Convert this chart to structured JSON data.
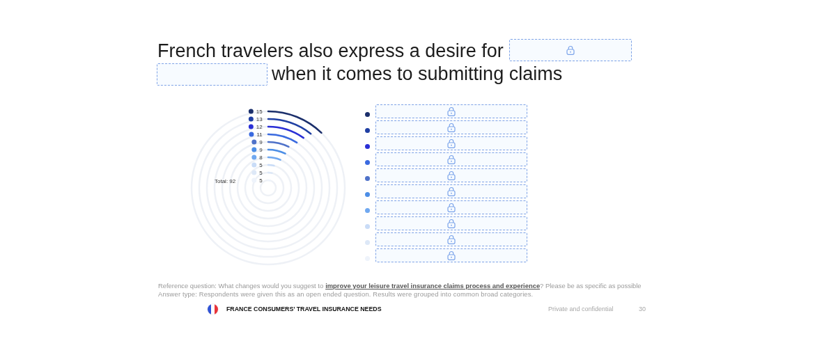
{
  "chart_data": {
    "type": "other",
    "title": "French travelers also express a desire for",
    "subtitle": "when it comes to submitting claims",
    "categories": [
      null,
      null,
      null,
      null,
      null,
      null,
      null,
      null,
      null,
      null
    ],
    "values": [
      15,
      13,
      12,
      11,
      9,
      9,
      8,
      5,
      5,
      5
    ],
    "colors": [
      "#1b2f6b",
      "#1f3fa3",
      "#2a2fd6",
      "#3a6ae0",
      "#4f72c9",
      "#4c8ee6",
      "#70a8f0",
      "#c9dcf7",
      "#dde8f7",
      "#eef3fb"
    ],
    "data_labels": true,
    "annotations": [
      "Total: 92",
      "Reference question: What changes would you suggest to",
      "improve your leisure travel insurance claims process and experience",
      "? Please be as specific as possible",
      "Answer type: Respondents were given this as an open ended question. Results were grouped into common broad categories.",
      "FRANCE CONSUMERS’ TRAVEL INSURANCE NEEDS",
      "Private and confidential",
      "30"
    ]
  }
}
